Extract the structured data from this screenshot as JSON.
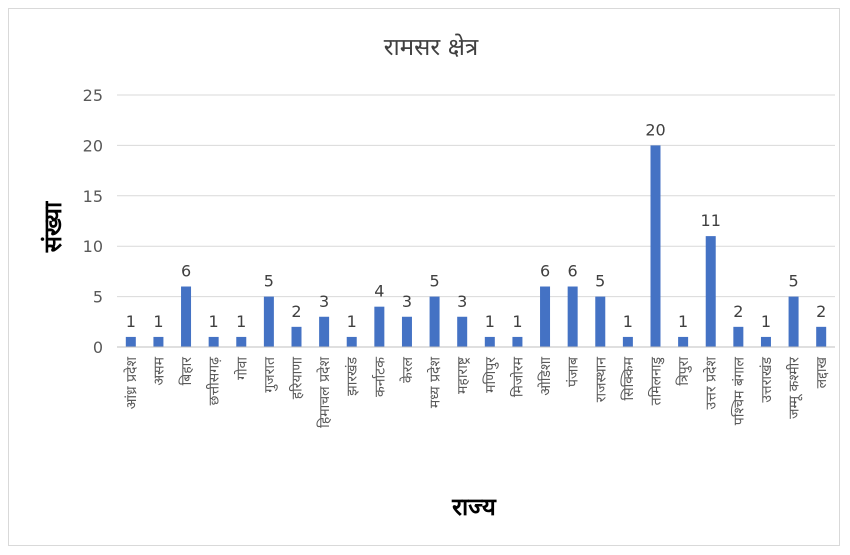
{
  "chart_data": {
    "type": "bar",
    "title": "रामसर क्षेत्र",
    "xlabel": "राज्य",
    "ylabel": "संख्या",
    "ylim": [
      0,
      25
    ],
    "yticks": [
      0,
      5,
      10,
      15,
      20,
      25
    ],
    "grid": true,
    "legend": "none",
    "bar_color": "#4472C4",
    "categories": [
      "आंध्र प्रदेश",
      "असम",
      "बिहार",
      "छत्तीसगढ़",
      "गोवा",
      "गुजरात",
      "हरियाणा",
      "हिमाचल प्रदेश",
      "झारखंड",
      "कर्नाटक",
      "केरल",
      "मध्य प्रदेश",
      "महाराष्ट्र",
      "मणिपुर",
      "मिजोरम",
      "ओडिशा",
      "पंजाब",
      "राजस्थान",
      "सिक्किम",
      "तमिलनाडु",
      "त्रिपुरा",
      "उत्तर प्रदेश",
      "पश्चिम बंगाल",
      "उत्तराखंड",
      "जम्मू कश्मीर",
      "लद्दाख"
    ],
    "values": [
      1,
      1,
      6,
      1,
      1,
      5,
      2,
      3,
      1,
      4,
      3,
      5,
      3,
      1,
      1,
      6,
      6,
      5,
      1,
      20,
      1,
      11,
      2,
      1,
      5,
      2
    ]
  }
}
